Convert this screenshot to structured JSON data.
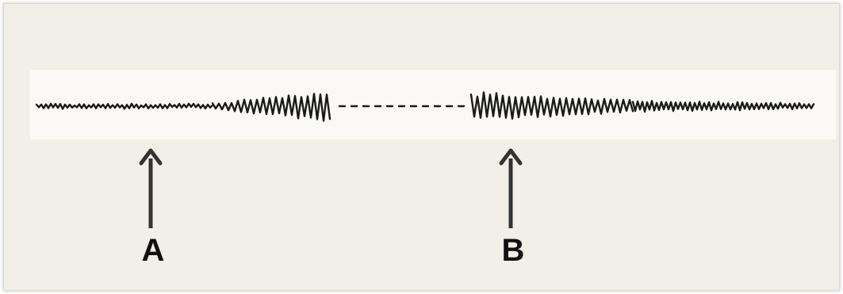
{
  "annotations": {
    "a": {
      "label": "A"
    },
    "b": {
      "label": "B"
    }
  },
  "colors": {
    "background": "#f1efe8",
    "strip": "#faf9f5",
    "ink": "#1a1a1a",
    "arrow": "#333333"
  }
}
